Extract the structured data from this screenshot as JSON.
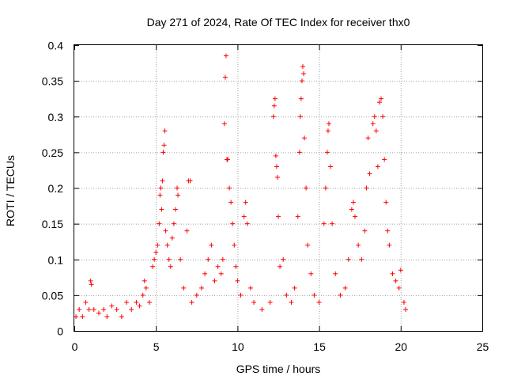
{
  "chart_data": {
    "type": "scatter",
    "title": "Day 271 of 2024, Rate Of TEC Index for receiver thx0",
    "xlabel": "GPS time / hours",
    "ylabel": "ROTI / TECUs",
    "xlim": [
      0,
      25
    ],
    "ylim": [
      0,
      0.4
    ],
    "x_ticks": [
      "0",
      "5",
      "10",
      "15",
      "20",
      "25"
    ],
    "y_ticks": [
      "0",
      "0.05",
      "0.1",
      "0.15",
      "0.2",
      "0.25",
      "0.3",
      "0.35",
      "0.4"
    ],
    "x_tick_values": [
      0,
      5,
      10,
      15,
      20,
      25
    ],
    "y_tick_values": [
      0,
      0.05,
      0.1,
      0.15,
      0.2,
      0.25,
      0.3,
      0.35,
      0.4
    ],
    "grid": true,
    "marker": "+",
    "marker_color": "#ff0000",
    "series": [
      {
        "points": [
          [
            0.1,
            0.02
          ],
          [
            0.3,
            0.03
          ],
          [
            0.5,
            0.02
          ],
          [
            0.7,
            0.04
          ],
          [
            0.9,
            0.03
          ],
          [
            1.0,
            0.07
          ],
          [
            1.05,
            0.065
          ],
          [
            1.2,
            0.03
          ],
          [
            1.5,
            0.025
          ],
          [
            1.8,
            0.03
          ],
          [
            2.0,
            0.02
          ],
          [
            2.3,
            0.035
          ],
          [
            2.6,
            0.03
          ],
          [
            2.9,
            0.02
          ],
          [
            3.2,
            0.04
          ],
          [
            3.5,
            0.03
          ],
          [
            3.8,
            0.04
          ],
          [
            4.0,
            0.035
          ],
          [
            4.2,
            0.05
          ],
          [
            4.3,
            0.07
          ],
          [
            4.4,
            0.06
          ],
          [
            4.6,
            0.04
          ],
          [
            4.8,
            0.09
          ],
          [
            4.9,
            0.1
          ],
          [
            5.0,
            0.11
          ],
          [
            5.1,
            0.12
          ],
          [
            5.2,
            0.15
          ],
          [
            5.25,
            0.19
          ],
          [
            5.3,
            0.2
          ],
          [
            5.35,
            0.17
          ],
          [
            5.4,
            0.21
          ],
          [
            5.45,
            0.25
          ],
          [
            5.5,
            0.26
          ],
          [
            5.55,
            0.28
          ],
          [
            5.6,
            0.14
          ],
          [
            5.7,
            0.12
          ],
          [
            5.8,
            0.1
          ],
          [
            5.9,
            0.09
          ],
          [
            6.0,
            0.13
          ],
          [
            6.1,
            0.15
          ],
          [
            6.2,
            0.17
          ],
          [
            6.3,
            0.2
          ],
          [
            6.35,
            0.19
          ],
          [
            6.5,
            0.1
          ],
          [
            6.7,
            0.06
          ],
          [
            6.9,
            0.14
          ],
          [
            7.0,
            0.21
          ],
          [
            7.1,
            0.21
          ],
          [
            7.2,
            0.04
          ],
          [
            7.5,
            0.05
          ],
          [
            7.8,
            0.06
          ],
          [
            8.0,
            0.08
          ],
          [
            8.2,
            0.1
          ],
          [
            8.4,
            0.12
          ],
          [
            8.6,
            0.07
          ],
          [
            8.8,
            0.09
          ],
          [
            9.0,
            0.08
          ],
          [
            9.1,
            0.1
          ],
          [
            9.2,
            0.29
          ],
          [
            9.25,
            0.355
          ],
          [
            9.3,
            0.385
          ],
          [
            9.35,
            0.24
          ],
          [
            9.4,
            0.24
          ],
          [
            9.5,
            0.2
          ],
          [
            9.6,
            0.18
          ],
          [
            9.7,
            0.15
          ],
          [
            9.8,
            0.12
          ],
          [
            9.9,
            0.09
          ],
          [
            10.0,
            0.07
          ],
          [
            10.2,
            0.05
          ],
          [
            10.4,
            0.16
          ],
          [
            10.5,
            0.18
          ],
          [
            10.6,
            0.15
          ],
          [
            10.8,
            0.06
          ],
          [
            11.0,
            0.04
          ],
          [
            11.5,
            0.03
          ],
          [
            12.0,
            0.04
          ],
          [
            12.2,
            0.3
          ],
          [
            12.25,
            0.315
          ],
          [
            12.3,
            0.325
          ],
          [
            12.35,
            0.245
          ],
          [
            12.4,
            0.23
          ],
          [
            12.45,
            0.215
          ],
          [
            12.5,
            0.16
          ],
          [
            12.6,
            0.09
          ],
          [
            12.8,
            0.1
          ],
          [
            13.0,
            0.05
          ],
          [
            13.3,
            0.04
          ],
          [
            13.5,
            0.06
          ],
          [
            13.7,
            0.16
          ],
          [
            13.8,
            0.25
          ],
          [
            13.85,
            0.3
          ],
          [
            13.9,
            0.325
          ],
          [
            13.95,
            0.35
          ],
          [
            14.0,
            0.37
          ],
          [
            14.05,
            0.36
          ],
          [
            14.1,
            0.27
          ],
          [
            14.2,
            0.2
          ],
          [
            14.3,
            0.12
          ],
          [
            14.5,
            0.08
          ],
          [
            14.7,
            0.05
          ],
          [
            15.0,
            0.04
          ],
          [
            15.3,
            0.15
          ],
          [
            15.4,
            0.2
          ],
          [
            15.5,
            0.25
          ],
          [
            15.55,
            0.28
          ],
          [
            15.6,
            0.29
          ],
          [
            15.7,
            0.23
          ],
          [
            15.8,
            0.15
          ],
          [
            16.0,
            0.08
          ],
          [
            16.3,
            0.05
          ],
          [
            16.6,
            0.06
          ],
          [
            16.8,
            0.1
          ],
          [
            17.0,
            0.17
          ],
          [
            17.1,
            0.18
          ],
          [
            17.2,
            0.16
          ],
          [
            17.4,
            0.12
          ],
          [
            17.6,
            0.1
          ],
          [
            17.8,
            0.14
          ],
          [
            17.9,
            0.2
          ],
          [
            18.0,
            0.27
          ],
          [
            18.1,
            0.22
          ],
          [
            18.3,
            0.29
          ],
          [
            18.4,
            0.3
          ],
          [
            18.5,
            0.28
          ],
          [
            18.6,
            0.23
          ],
          [
            18.7,
            0.32
          ],
          [
            18.8,
            0.325
          ],
          [
            18.9,
            0.3
          ],
          [
            19.0,
            0.24
          ],
          [
            19.1,
            0.18
          ],
          [
            19.2,
            0.14
          ],
          [
            19.3,
            0.12
          ],
          [
            19.5,
            0.08
          ],
          [
            19.7,
            0.07
          ],
          [
            19.9,
            0.06
          ],
          [
            20.0,
            0.085
          ],
          [
            20.2,
            0.04
          ],
          [
            20.3,
            0.03
          ]
        ]
      }
    ]
  }
}
